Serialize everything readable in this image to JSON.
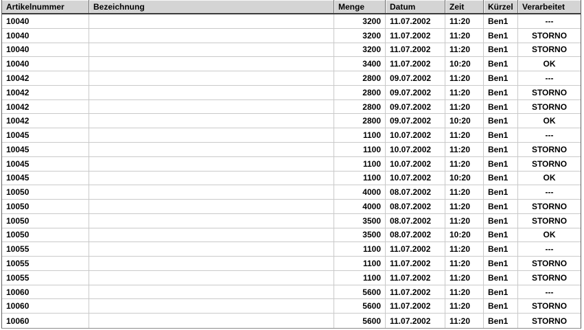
{
  "table": {
    "columns": [
      {
        "label": "Artikelnummer"
      },
      {
        "label": "Bezeichnung"
      },
      {
        "label": "Menge"
      },
      {
        "label": "Datum"
      },
      {
        "label": "Zeit"
      },
      {
        "label": "Kürzel"
      },
      {
        "label": "Verarbeitet"
      }
    ],
    "rows": [
      [
        "10040",
        "",
        "3200",
        "11.07.2002",
        "11:20",
        "Ben1",
        "---"
      ],
      [
        "10040",
        "",
        "3200",
        "11.07.2002",
        "11:20",
        "Ben1",
        "STORNO"
      ],
      [
        "10040",
        "",
        "3200",
        "11.07.2002",
        "11:20",
        "Ben1",
        "STORNO"
      ],
      [
        "10040",
        "",
        "3400",
        "11.07.2002",
        "10:20",
        "Ben1",
        "OK"
      ],
      [
        "10042",
        "",
        "2800",
        "09.07.2002",
        "11:20",
        "Ben1",
        "---"
      ],
      [
        "10042",
        "",
        "2800",
        "09.07.2002",
        "11:20",
        "Ben1",
        "STORNO"
      ],
      [
        "10042",
        "",
        "2800",
        "09.07.2002",
        "11:20",
        "Ben1",
        "STORNO"
      ],
      [
        "10042",
        "",
        "2800",
        "09.07.2002",
        "10:20",
        "Ben1",
        "OK"
      ],
      [
        "10045",
        "",
        "1100",
        "10.07.2002",
        "11:20",
        "Ben1",
        "---"
      ],
      [
        "10045",
        "",
        "1100",
        "10.07.2002",
        "11:20",
        "Ben1",
        "STORNO"
      ],
      [
        "10045",
        "",
        "1100",
        "10.07.2002",
        "11:20",
        "Ben1",
        "STORNO"
      ],
      [
        "10045",
        "",
        "1100",
        "10.07.2002",
        "10:20",
        "Ben1",
        "OK"
      ],
      [
        "10050",
        "",
        "4000",
        "08.07.2002",
        "11:20",
        "Ben1",
        "---"
      ],
      [
        "10050",
        "",
        "4000",
        "08.07.2002",
        "11:20",
        "Ben1",
        "STORNO"
      ],
      [
        "10050",
        "",
        "3500",
        "08.07.2002",
        "11:20",
        "Ben1",
        "STORNO"
      ],
      [
        "10050",
        "",
        "3500",
        "08.07.2002",
        "10:20",
        "Ben1",
        "OK"
      ],
      [
        "10055",
        "",
        "1100",
        "11.07.2002",
        "11:20",
        "Ben1",
        "---"
      ],
      [
        "10055",
        "",
        "1100",
        "11.07.2002",
        "11:20",
        "Ben1",
        "STORNO"
      ],
      [
        "10055",
        "",
        "1100",
        "11.07.2002",
        "11:20",
        "Ben1",
        "STORNO"
      ],
      [
        "10060",
        "",
        "5600",
        "11.07.2002",
        "11:20",
        "Ben1",
        "---"
      ],
      [
        "10060",
        "",
        "5600",
        "11.07.2002",
        "11:20",
        "Ben1",
        "STORNO"
      ],
      [
        "10060",
        "",
        "5600",
        "11.07.2002",
        "11:20",
        "Ben1",
        "STORNO"
      ]
    ]
  },
  "colors": {
    "header_bg": "#d4d4d4",
    "grid_line": "#c9c9c9",
    "border_dark": "#5f5f5f",
    "header_underline": "#3a3a3a",
    "row_bg": "#ffffff",
    "text": "#000000"
  }
}
